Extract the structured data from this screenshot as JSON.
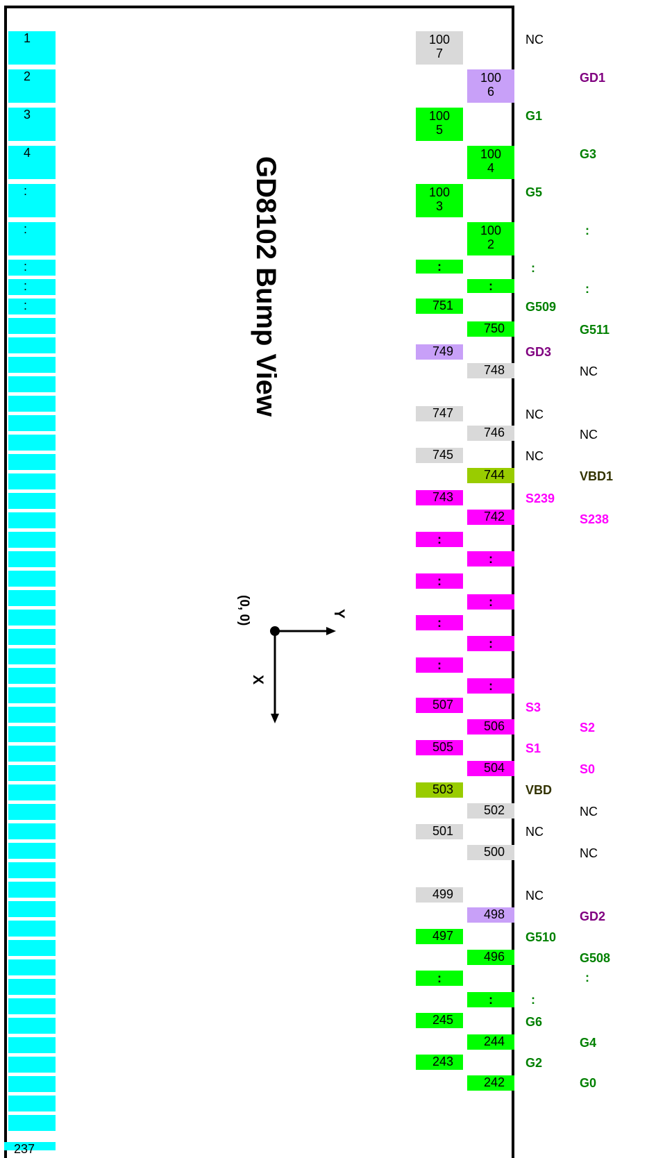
{
  "title": "GD8102 Bump View",
  "axes": {
    "origin": "(0, 0)",
    "x": "X",
    "y": "Y"
  },
  "colors": {
    "cyan": "#00ffff",
    "gray": "#d9d9d9",
    "lavender": "#c8a0f8",
    "green": "#00ff00",
    "olive": "#99cc00",
    "magenta": "#ff00ff",
    "gate_text": "#008000",
    "gd_text": "#800080",
    "source_text": "#ff00ff",
    "vbd_text": "#333300",
    "nc_text": "#000000"
  },
  "left_pads": [
    "1",
    "2",
    "3",
    "4",
    ":",
    ":",
    ":",
    ":",
    ":",
    "237"
  ],
  "right_pads": [
    {
      "label": "100\n7",
      "color": "gray"
    },
    {
      "label": "100\n6",
      "color": "lavender"
    },
    {
      "label": "100\n5",
      "color": "green"
    },
    {
      "label": "100\n4",
      "color": "green"
    },
    {
      "label": "100\n3",
      "color": "green"
    },
    {
      "label": "100\n2",
      "color": "green"
    },
    {
      "label": ":",
      "color": "green"
    },
    {
      "label": ":",
      "color": "green"
    },
    {
      "label": "751",
      "color": "green"
    },
    {
      "label": "750",
      "color": "green"
    },
    {
      "label": "749",
      "color": "lavender"
    },
    {
      "label": "748",
      "color": "gray"
    },
    {
      "label": "747",
      "color": "gray"
    },
    {
      "label": "746",
      "color": "gray"
    },
    {
      "label": "745",
      "color": "gray"
    },
    {
      "label": "744",
      "color": "olive"
    },
    {
      "label": "743",
      "color": "magenta"
    },
    {
      "label": "742",
      "color": "magenta"
    },
    {
      "label": ":",
      "color": "magenta"
    },
    {
      "label": ":",
      "color": "magenta"
    },
    {
      "label": ":",
      "color": "magenta"
    },
    {
      "label": ":",
      "color": "magenta"
    },
    {
      "label": ":",
      "color": "magenta"
    },
    {
      "label": ":",
      "color": "magenta"
    },
    {
      "label": ":",
      "color": "magenta"
    },
    {
      "label": ":",
      "color": "magenta"
    },
    {
      "label": "507",
      "color": "magenta"
    },
    {
      "label": "506",
      "color": "magenta"
    },
    {
      "label": "505",
      "color": "magenta"
    },
    {
      "label": "504",
      "color": "magenta"
    },
    {
      "label": "503",
      "color": "olive"
    },
    {
      "label": "502",
      "color": "gray"
    },
    {
      "label": "501",
      "color": "gray"
    },
    {
      "label": "500",
      "color": "gray"
    },
    {
      "label": "499",
      "color": "gray"
    },
    {
      "label": "498",
      "color": "lavender"
    },
    {
      "label": "497",
      "color": "green"
    },
    {
      "label": "496",
      "color": "green"
    },
    {
      "label": ":",
      "color": "green"
    },
    {
      "label": ":",
      "color": "green"
    },
    {
      "label": "245",
      "color": "green"
    },
    {
      "label": "244",
      "color": "green"
    },
    {
      "label": "243",
      "color": "green"
    },
    {
      "label": "242",
      "color": "green"
    }
  ],
  "signals": [
    {
      "label": "NC",
      "type": "nc"
    },
    {
      "label": "GD1",
      "type": "gd"
    },
    {
      "label": "G1",
      "type": "gate"
    },
    {
      "label": "G3",
      "type": "gate"
    },
    {
      "label": "G5",
      "type": "gate"
    },
    {
      "label": ":",
      "type": "gate"
    },
    {
      "label": ":",
      "type": "gate"
    },
    {
      "label": ":",
      "type": "gate"
    },
    {
      "label": "G509",
      "type": "gate"
    },
    {
      "label": "G511",
      "type": "gate"
    },
    {
      "label": "GD3",
      "type": "gd"
    },
    {
      "label": "NC",
      "type": "nc"
    },
    {
      "label": "NC",
      "type": "nc"
    },
    {
      "label": "NC",
      "type": "nc"
    },
    {
      "label": "NC",
      "type": "nc"
    },
    {
      "label": "VBD1",
      "type": "vbd"
    },
    {
      "label": "S239",
      "type": "source"
    },
    {
      "label": "S238",
      "type": "source"
    },
    {
      "label": "S3",
      "type": "source"
    },
    {
      "label": "S2",
      "type": "source"
    },
    {
      "label": "S1",
      "type": "source"
    },
    {
      "label": "S0",
      "type": "source"
    },
    {
      "label": "VBD",
      "type": "vbd"
    },
    {
      "label": "NC",
      "type": "nc"
    },
    {
      "label": "NC",
      "type": "nc"
    },
    {
      "label": "NC",
      "type": "nc"
    },
    {
      "label": "NC",
      "type": "nc"
    },
    {
      "label": "GD2",
      "type": "gd"
    },
    {
      "label": "G510",
      "type": "gate"
    },
    {
      "label": "G508",
      "type": "gate"
    },
    {
      "label": ":",
      "type": "gate"
    },
    {
      "label": ":",
      "type": "gate"
    },
    {
      "label": "G6",
      "type": "gate"
    },
    {
      "label": "G4",
      "type": "gate"
    },
    {
      "label": "G2",
      "type": "gate"
    },
    {
      "label": "G0",
      "type": "gate"
    }
  ]
}
